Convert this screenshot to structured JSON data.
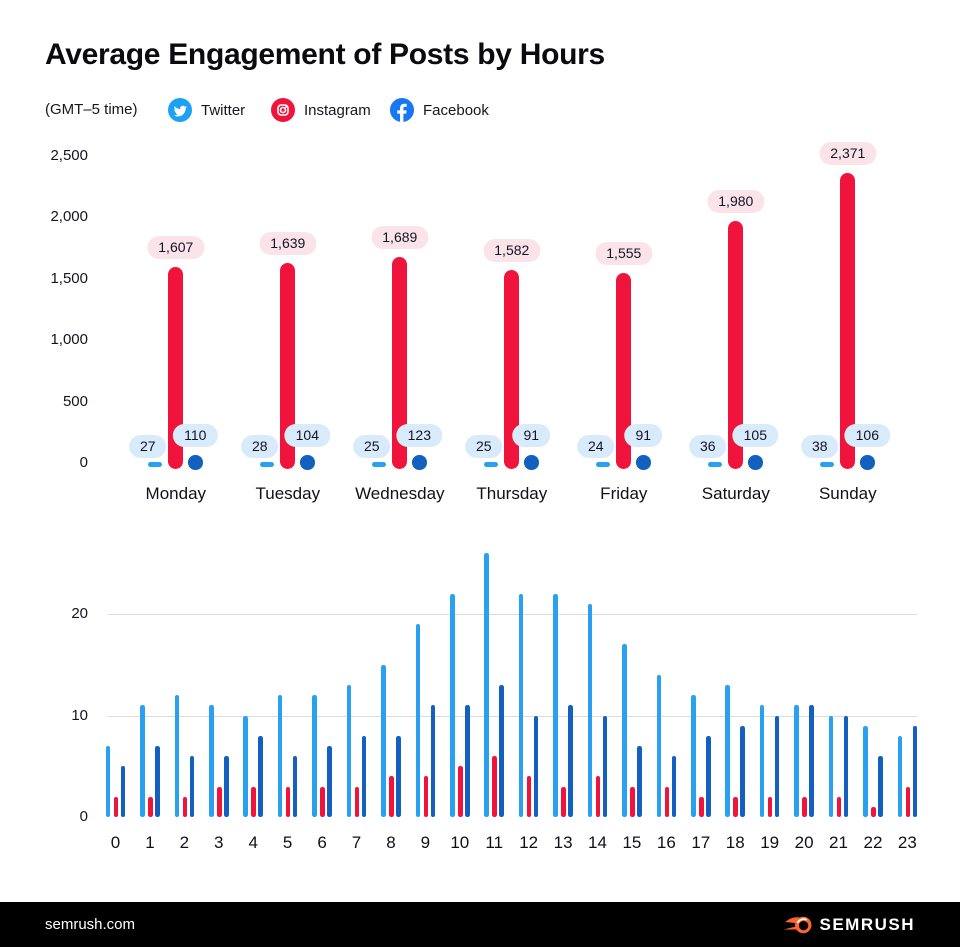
{
  "header": {
    "title": "Average Engagement of Posts by Hours",
    "timezone_note": "(GMT–5 time)"
  },
  "legend": {
    "items": [
      {
        "label": "Twitter",
        "icon": "twitter-icon"
      },
      {
        "label": "Instagram",
        "icon": "instagram-icon"
      },
      {
        "label": "Facebook",
        "icon": "facebook-icon"
      }
    ]
  },
  "colors": {
    "twitter": "#2AA1F0",
    "twitter_legend": "#1DA1F2",
    "instagram": "#F0143C",
    "facebook": "#1460C0",
    "facebook_legend": "#1877F2",
    "instagram_pill_bg": "#FBE3EA",
    "blue_pill_bg": "#D8EBFA",
    "gridline": "#DCDCDC",
    "footer_bg": "#000000",
    "brand_orange": "#FF642D"
  },
  "chart_data": [
    {
      "type": "bar",
      "title": "Average engagement of posts by day of week",
      "categories": [
        "Monday",
        "Tuesday",
        "Wednesday",
        "Thursday",
        "Friday",
        "Saturday",
        "Sunday"
      ],
      "series": [
        {
          "name": "Twitter",
          "color": "#2AA1F0",
          "values": [
            27,
            28,
            25,
            25,
            24,
            36,
            38
          ],
          "labels": [
            "27",
            "28",
            "25",
            "25",
            "24",
            "36",
            "38"
          ]
        },
        {
          "name": "Instagram",
          "color": "#F0143C",
          "values": [
            1607,
            1639,
            1689,
            1582,
            1555,
            1980,
            2371
          ],
          "labels": [
            "1,607",
            "1,639",
            "1,689",
            "1,582",
            "1,555",
            "1,980",
            "2,371"
          ]
        },
        {
          "name": "Facebook",
          "color": "#1460C0",
          "values": [
            110,
            104,
            123,
            91,
            91,
            105,
            106
          ],
          "labels": [
            "110",
            "104",
            "123",
            "91",
            "91",
            "105",
            "106"
          ]
        }
      ],
      "yticks": [
        0,
        500,
        1000,
        1500,
        2000,
        2500
      ],
      "ytick_labels": [
        "0",
        "500",
        "1,000",
        "1,500",
        "2,000",
        "2,500"
      ],
      "ylim": [
        0,
        2500
      ],
      "grid": false,
      "legend_position": "top"
    },
    {
      "type": "bar",
      "title": "Average engagement of posts by hour (GMT-5)",
      "categories": [
        "0",
        "1",
        "2",
        "3",
        "4",
        "5",
        "6",
        "7",
        "8",
        "9",
        "10",
        "11",
        "12",
        "13",
        "14",
        "15",
        "16",
        "17",
        "18",
        "19",
        "20",
        "21",
        "22",
        "23"
      ],
      "series": [
        {
          "name": "Twitter",
          "color": "#2AA1F0",
          "values": [
            7,
            11,
            12,
            11,
            10,
            12,
            12,
            13,
            15,
            19,
            22,
            26,
            22,
            22,
            21,
            17,
            14,
            12,
            13,
            11,
            11,
            10,
            9,
            8
          ]
        },
        {
          "name": "Instagram",
          "color": "#F0143C",
          "values": [
            2,
            2,
            2,
            3,
            3,
            3,
            3,
            3,
            4,
            4,
            5,
            6,
            4,
            3,
            4,
            3,
            3,
            2,
            2,
            2,
            2,
            2,
            1,
            3
          ]
        },
        {
          "name": "Facebook",
          "color": "#1460C0",
          "values": [
            5,
            7,
            6,
            6,
            8,
            6,
            7,
            8,
            8,
            11,
            11,
            13,
            10,
            11,
            10,
            7,
            6,
            8,
            9,
            10,
            11,
            10,
            6,
            9
          ]
        }
      ],
      "yticks": [
        0,
        10,
        20
      ],
      "ytick_labels": [
        "0",
        "10",
        "20"
      ],
      "ylim": [
        0,
        27
      ],
      "grid": true
    }
  ],
  "footer": {
    "site": "semrush.com",
    "brand": "SEMRUSH"
  }
}
